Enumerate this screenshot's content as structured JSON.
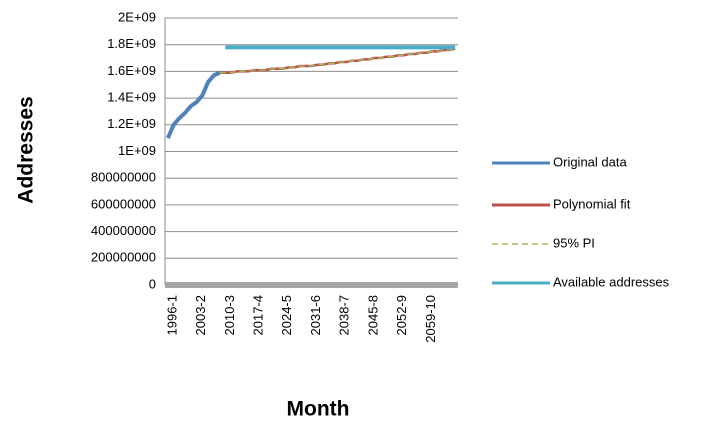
{
  "chart_data": {
    "type": "line",
    "xlabel": "Month",
    "ylabel": "Addresses",
    "categories": [
      "1996-1",
      null,
      null,
      null,
      null,
      "2003-2",
      null,
      null,
      null,
      null,
      "2010-3",
      null,
      null,
      null,
      null,
      "2017-4",
      null,
      null,
      null,
      null,
      "2024-5",
      null,
      null,
      null,
      null,
      "2031-6",
      null,
      null,
      null,
      null,
      "2038-7",
      null,
      null,
      null,
      null,
      "2045-8",
      null,
      null,
      null,
      null,
      "2052-9",
      null,
      null,
      null,
      null,
      "2059-10",
      null,
      null,
      null,
      null,
      null
    ],
    "series": [
      {
        "name": "Original data",
        "color": "#4f81bd",
        "dashed": false,
        "values": [
          1100000000,
          1200000000,
          1250000000,
          1290000000,
          1340000000,
          1370000000,
          1420000000,
          1520000000,
          1570000000,
          1590000000,
          null,
          null,
          null,
          null,
          null,
          null,
          null,
          null,
          null,
          null,
          null,
          null,
          null,
          null,
          null,
          null,
          null,
          null,
          null,
          null,
          null,
          null,
          null,
          null,
          null,
          null,
          null,
          null,
          null,
          null,
          null,
          null,
          null,
          null,
          null,
          null,
          null,
          null,
          null,
          null,
          null
        ]
      },
      {
        "name": "Polynomial fit",
        "color": "#c0504d",
        "dashed": false,
        "values": [
          null,
          null,
          null,
          null,
          null,
          null,
          null,
          null,
          null,
          1590000000,
          1590000000,
          1590000000,
          1600000000,
          1600000000,
          1600000000,
          1610000000,
          1610000000,
          1610000000,
          1620000000,
          1620000000,
          1620000000,
          1630000000,
          1630000000,
          1640000000,
          1640000000,
          1640000000,
          1650000000,
          1650000000,
          1660000000,
          1660000000,
          1670000000,
          1670000000,
          1680000000,
          1680000000,
          1690000000,
          1690000000,
          1700000000,
          1700000000,
          1710000000,
          1710000000,
          1720000000,
          1720000000,
          1730000000,
          1730000000,
          1740000000,
          1740000000,
          1750000000,
          1750000000,
          1760000000,
          1760000000,
          1770000000
        ]
      },
      {
        "name": "95% PI",
        "color": "#9bbb59",
        "dashed": true,
        "values": [
          null,
          null,
          null,
          null,
          null,
          null,
          null,
          null,
          null,
          1590000000,
          1590000000,
          1590000000,
          1600000000,
          1600000000,
          1600000000,
          1610000000,
          1610000000,
          1610000000,
          1620000000,
          1620000000,
          1620000000,
          1630000000,
          1630000000,
          1640000000,
          1640000000,
          1640000000,
          1650000000,
          1650000000,
          1660000000,
          1660000000,
          1670000000,
          1670000000,
          1680000000,
          1680000000,
          1690000000,
          1690000000,
          1700000000,
          1700000000,
          1710000000,
          1710000000,
          1720000000,
          1720000000,
          1730000000,
          1730000000,
          1740000000,
          1740000000,
          1750000000,
          1750000000,
          1760000000,
          1760000000,
          1770000000
        ]
      },
      {
        "name": "Available addresses",
        "color": "#4bacc6",
        "dashed": false,
        "values": [
          null,
          null,
          null,
          null,
          null,
          null,
          null,
          null,
          null,
          null,
          1780000000,
          1780000000,
          1780000000,
          1780000000,
          1780000000,
          1780000000,
          1780000000,
          1780000000,
          1780000000,
          1780000000,
          1780000000,
          1780000000,
          1780000000,
          1780000000,
          1780000000,
          1780000000,
          1780000000,
          1780000000,
          1780000000,
          1780000000,
          1780000000,
          1780000000,
          1780000000,
          1780000000,
          1780000000,
          1780000000,
          1780000000,
          1780000000,
          1780000000,
          1780000000,
          1780000000,
          1780000000,
          1780000000,
          1780000000,
          1780000000,
          1780000000,
          1780000000,
          1780000000,
          1780000000,
          1780000000,
          1780000000
        ]
      }
    ],
    "ylim": [
      0,
      2000000000
    ],
    "yticks": [
      0,
      200000000,
      400000000,
      600000000,
      800000000,
      {
        "value": 1000000000,
        "label": "1E+09"
      },
      {
        "value": 1200000000,
        "label": "1.2E+09"
      },
      {
        "value": 1400000000,
        "label": "1.4E+09"
      },
      {
        "value": 1600000000,
        "label": "1.6E+09"
      },
      {
        "value": 1800000000,
        "label": "1.8E+09"
      },
      {
        "value": 2000000000,
        "label": "2E+09"
      }
    ],
    "grid": true,
    "legend": "right"
  }
}
